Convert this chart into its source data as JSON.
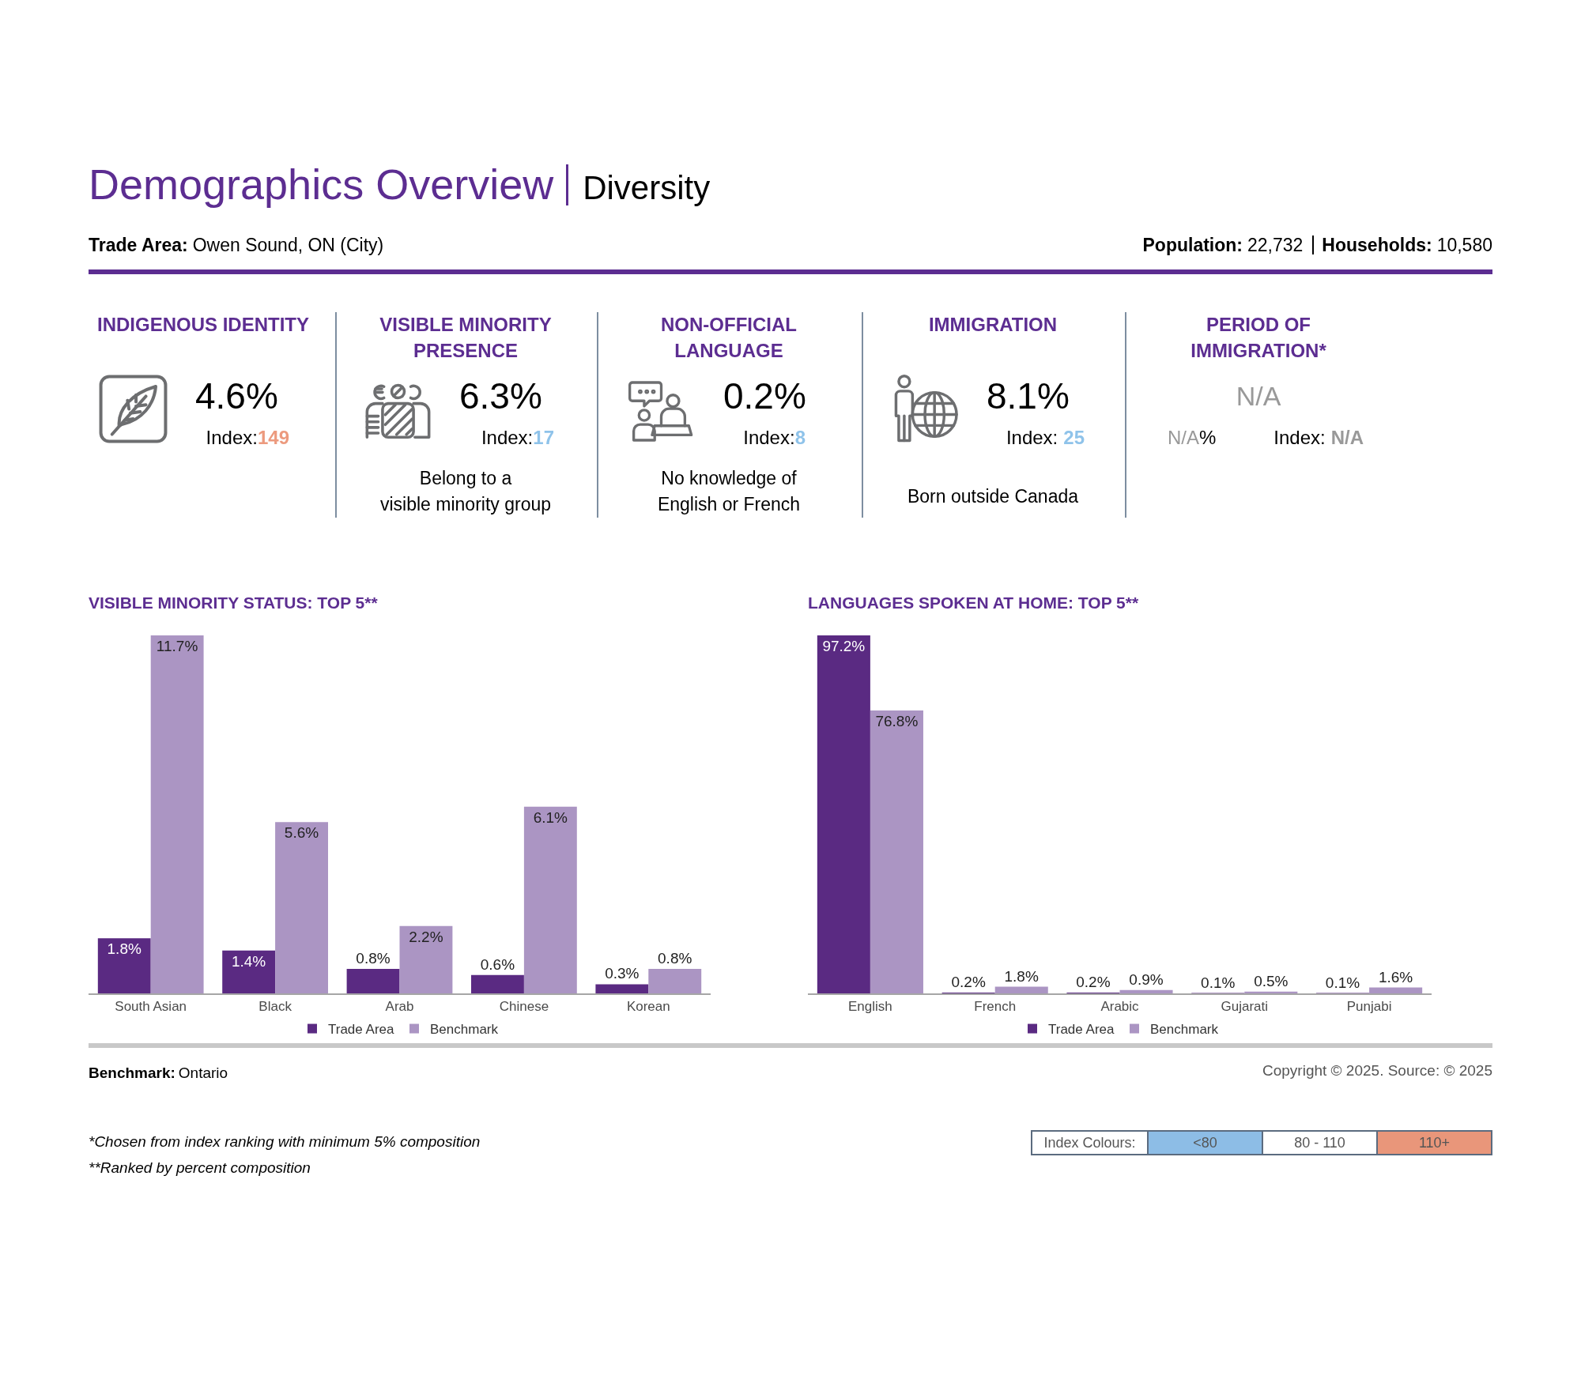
{
  "chart_data": [
    {
      "type": "other",
      "title": "Demographics Overview",
      "subtitle": "Diversity",
      "annotations": [
        "Trade Area:",
        "Owen Sound, ON (City)",
        "Population:",
        "22,732",
        "Households:",
        "10,580",
        "INDIGENOUS IDENTITY",
        "4.6%",
        "Index:",
        "149",
        "VISIBLE MINORITY\nPRESENCE",
        "6.3%",
        "Index:",
        "17",
        "Belong to a\nvisible minority group",
        "NON-OFFICIAL\nLANGUAGE",
        "0.2%",
        "Index:",
        "8",
        "No knowledge of\nEnglish or French",
        "IMMIGRATION",
        "8.1%",
        "Index:",
        "25",
        "Born outside Canada",
        "PERIOD OF\nIMMIGRATION*",
        "N/A",
        "N/A",
        "%",
        "Index:",
        "N/A"
      ],
      "colors": [
        "#000000",
        "#000000",
        "#000000",
        "#000000",
        "#000000",
        "#000000",
        "#5c2d91",
        "#000000",
        "#000000",
        "#ec9a7e",
        "#5c2d91",
        "#000000",
        "#000000",
        "#8fc3ea",
        "#000000",
        "#5c2d91",
        "#000000",
        "#000000",
        "#8fc3ea",
        "#000000",
        "#5c2d91",
        "#000000",
        "#000000",
        "#8fc3ea",
        "#000000",
        "#5c2d91",
        "#999999",
        "#999999",
        "#000000",
        "#000000",
        "#999999"
      ]
    },
    {
      "type": "bar",
      "title": "VISIBLE MINORITY STATUS: TOP 5**",
      "categories": [
        "South Asian",
        "Black",
        "Arab",
        "Chinese",
        "Korean"
      ],
      "series": [
        {
          "name": "Trade Area",
          "color": "#5a2a82",
          "values": [
            1.8,
            1.4,
            0.8,
            0.6,
            0.3
          ],
          "value_labels": [
            "1.8%",
            "1.4%",
            "0.8%",
            "0.6%",
            "0.3%"
          ]
        },
        {
          "name": "Benchmark",
          "color": "#ab95c3",
          "values": [
            11.7,
            5.6,
            2.2,
            6.1,
            0.8
          ],
          "value_labels": [
            "11.7%",
            "5.6%",
            "2.2%",
            "6.1%",
            "0.8%"
          ]
        }
      ],
      "legend": "bottom",
      "tick_labels": "x"
    },
    {
      "type": "bar",
      "title": "LANGUAGES SPOKEN AT HOME: TOP 5**",
      "categories": [
        "English",
        "French",
        "Arabic",
        "Gujarati",
        "Punjabi"
      ],
      "series": [
        {
          "name": "Trade Area",
          "color": "#5a2a82",
          "values": [
            97.2,
            0.2,
            0.2,
            0.1,
            0.1
          ],
          "value_labels": [
            "97.2%",
            "0.2%",
            "0.2%",
            "0.1%",
            "0.1%"
          ]
        },
        {
          "name": "Benchmark",
          "color": "#ab95c3",
          "values": [
            76.8,
            1.8,
            0.9,
            0.5,
            1.6
          ],
          "value_labels": [
            "76.8%",
            "1.8%",
            "0.9%",
            "0.5%",
            "1.6%"
          ]
        }
      ],
      "legend": "bottom",
      "tick_labels": "x"
    },
    {
      "type": "other",
      "annotations": [
        "Benchmark:",
        "Ontario",
        "Copyright © 2025. Source: © 2025",
        "*Chosen from index ranking with minimum 5% composition",
        "**Ranked by percent composition"
      ],
      "legend_title": "Index Colours:",
      "categories": [
        "<80",
        "80 - 110",
        "110+"
      ],
      "colors": [
        "#8dbde6",
        "#ffffff",
        "#e9967a"
      ]
    }
  ]
}
